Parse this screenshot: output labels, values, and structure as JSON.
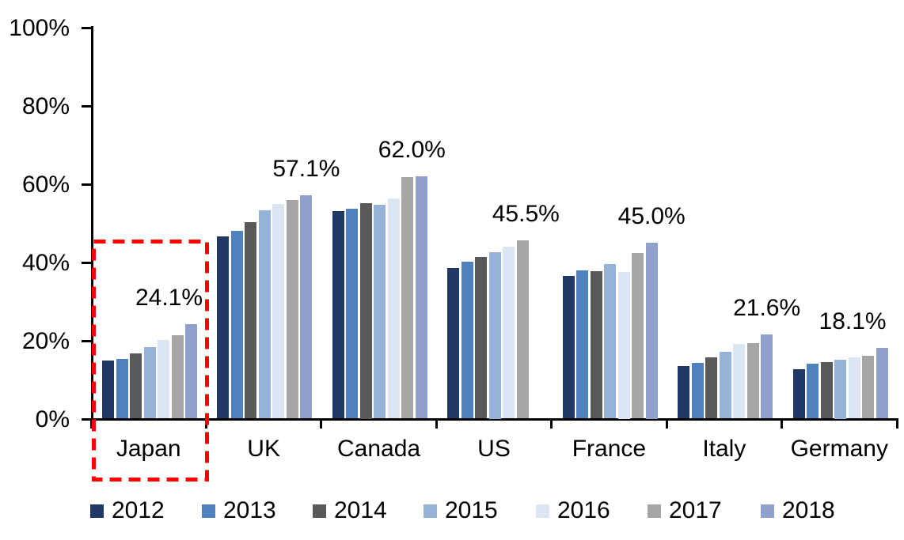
{
  "chart_data": {
    "type": "bar",
    "title": "",
    "categories": [
      "Japan",
      "UK",
      "Canada",
      "US",
      "France",
      "Italy",
      "Germany"
    ],
    "series": [
      {
        "name": "2012",
        "color": "#1F3864",
        "values": [
          14.8,
          46.5,
          53.1,
          38.4,
          36.5,
          13.4,
          12.6
        ]
      },
      {
        "name": "2013",
        "color": "#4F81BD",
        "values": [
          15.2,
          48.0,
          53.6,
          40.2,
          37.8,
          14.3,
          14.0
        ]
      },
      {
        "name": "2014",
        "color": "#595959",
        "values": [
          16.7,
          50.2,
          55.0,
          41.3,
          37.7,
          15.6,
          14.4
        ]
      },
      {
        "name": "2015",
        "color": "#95B3D7",
        "values": [
          18.3,
          53.3,
          54.7,
          42.5,
          39.4,
          17.1,
          15.0
        ]
      },
      {
        "name": "2016",
        "color": "#DCE6F2",
        "values": [
          20.1,
          54.9,
          56.3,
          43.9,
          37.5,
          19.1,
          15.7
        ]
      },
      {
        "name": "2017",
        "color": "#A6A6A6",
        "values": [
          21.3,
          55.9,
          61.7,
          45.5,
          42.4,
          19.3,
          16.1
        ]
      },
      {
        "name": "2018",
        "color": "#8FA0CD",
        "values": [
          24.1,
          57.1,
          62.0,
          null,
          45.0,
          21.6,
          18.1
        ]
      }
    ],
    "data_labels": [
      "24.1%",
      "57.1%",
      "62.0%",
      "45.5%",
      "45.0%",
      "21.6%",
      "18.1%"
    ],
    "yticks": [
      "0%",
      "20%",
      "40%",
      "60%",
      "80%",
      "100%"
    ],
    "ylim": [
      0,
      100
    ],
    "grid": false,
    "legend_position": "bottom",
    "axis_color": "#000000",
    "highlight": {
      "shape": "dashed-rectangle",
      "color": "#FF0000",
      "target_category": "Japan"
    }
  }
}
